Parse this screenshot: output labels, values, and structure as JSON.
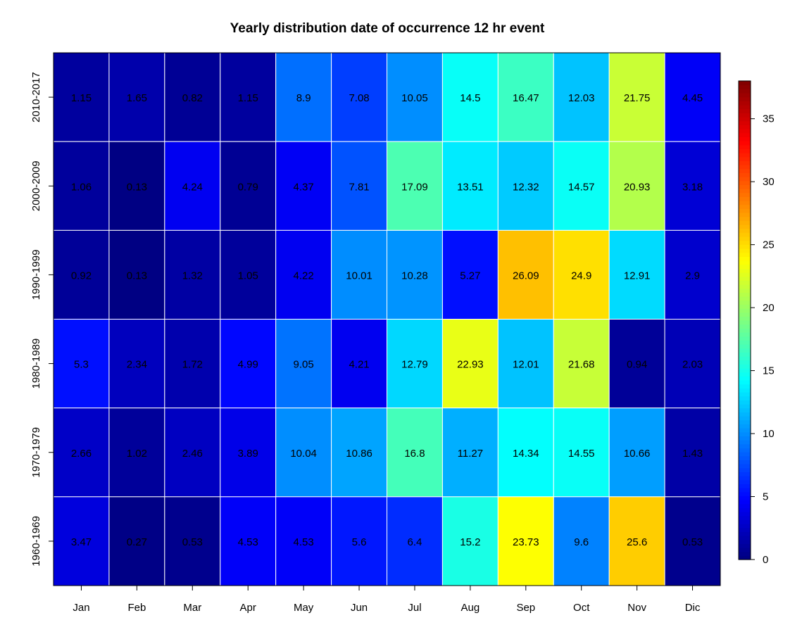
{
  "chart_data": {
    "type": "heatmap",
    "title": "Yearly distribution date of occurrence 12 hr event",
    "xlabel": "",
    "ylabel": "",
    "x_categories": [
      "Jan",
      "Feb",
      "Mar",
      "Apr",
      "May",
      "Jun",
      "Jul",
      "Aug",
      "Sep",
      "Oct",
      "Nov",
      "Dic"
    ],
    "y_categories": [
      "2010-2017",
      "2000-2009",
      "1990-1999",
      "1980-1989",
      "1970-1979",
      "1960-1969"
    ],
    "values": [
      [
        1.15,
        1.65,
        0.82,
        1.15,
        8.9,
        7.08,
        10.05,
        14.5,
        16.47,
        12.03,
        21.75,
        4.45
      ],
      [
        1.06,
        0.13,
        4.24,
        0.79,
        4.37,
        7.81,
        17.09,
        13.51,
        12.32,
        14.57,
        20.93,
        3.18
      ],
      [
        0.92,
        0.13,
        1.32,
        1.05,
        4.22,
        10.01,
        10.28,
        5.27,
        26.09,
        24.9,
        12.91,
        2.9
      ],
      [
        5.3,
        2.34,
        1.72,
        4.99,
        9.05,
        4.21,
        12.79,
        22.93,
        12.01,
        21.68,
        0.94,
        2.03
      ],
      [
        2.66,
        1.02,
        2.46,
        3.89,
        10.04,
        10.86,
        16.8,
        11.27,
        14.34,
        14.55,
        10.66,
        1.43
      ],
      [
        3.47,
        0.27,
        0.53,
        4.53,
        4.53,
        5.6,
        6.4,
        15.2,
        23.73,
        9.6,
        25.6,
        0.53
      ]
    ],
    "colorbar": {
      "range": [
        0,
        38
      ],
      "ticks": [
        0,
        5,
        10,
        15,
        20,
        25,
        30,
        35
      ],
      "colormap": "jet",
      "colors": [
        "#00007F",
        "#0000FF",
        "#007FFF",
        "#00FFFF",
        "#7FFF7F",
        "#FFFF00",
        "#FF7F00",
        "#FF0000",
        "#7F0000"
      ]
    },
    "grid": false,
    "legend": "right"
  }
}
